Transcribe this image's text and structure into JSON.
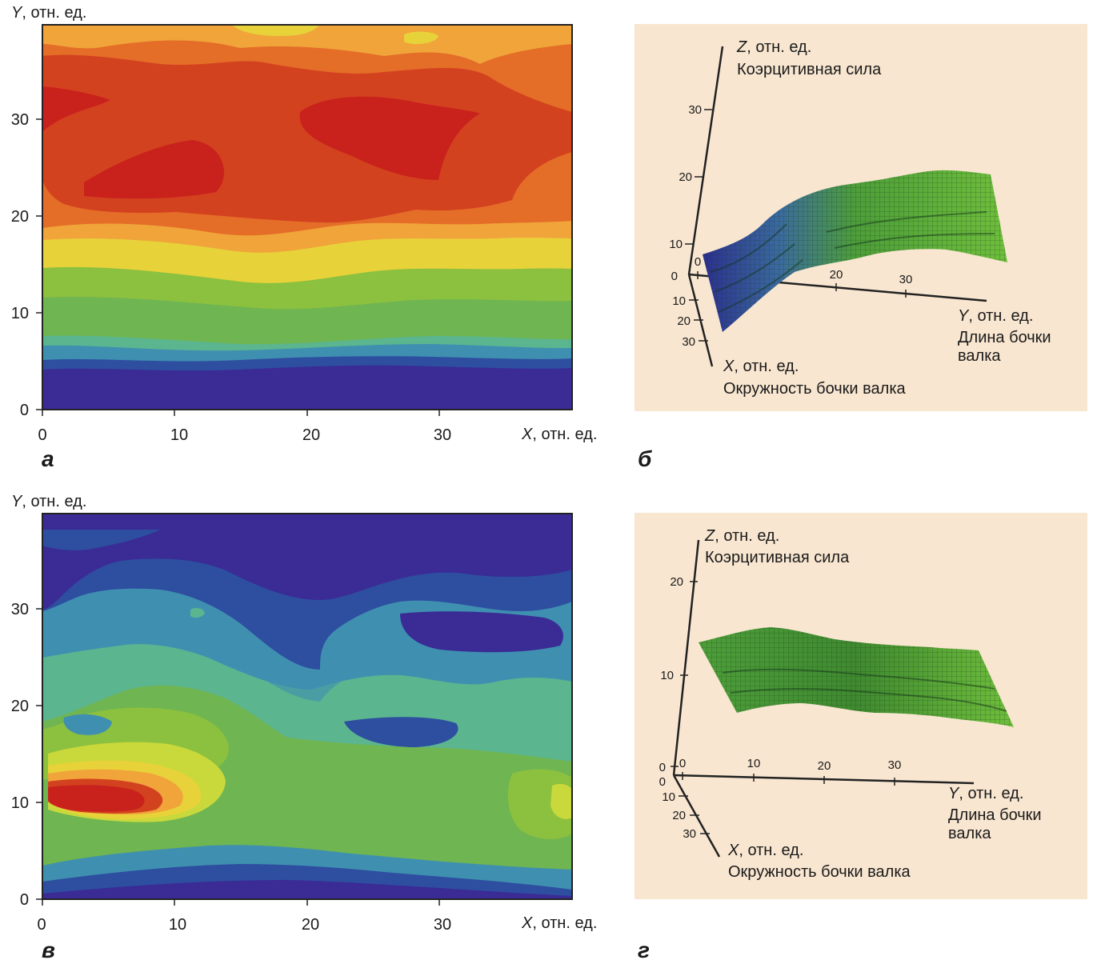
{
  "chart_data": [
    {
      "panel": "а",
      "type": "heatmap",
      "xlabel_var": "X",
      "xlabel_unit": ", отн. ед.",
      "ylabel_var": "Y",
      "ylabel_unit": ", отн. ед.",
      "xticks": [
        0,
        10,
        20,
        30
      ],
      "yticks": [
        0,
        10,
        20,
        30
      ],
      "xlim": [
        0,
        40
      ],
      "ylim": [
        0,
        40
      ],
      "colors": [
        "#3a2b95",
        "#2e4ea0",
        "#3f8fb0",
        "#5bb58f",
        "#6fb552",
        "#8cc03f",
        "#c9d83a",
        "#e8d23a",
        "#f0a43a",
        "#e46d28",
        "#d3421f",
        "#c9221c"
      ]
    },
    {
      "panel": "б",
      "type": "surface3d",
      "zlabel_var": "Z",
      "zlabel_unit": ", отн. ед.",
      "zlabel_desc": "Коэрцитивная сила",
      "ylabel_var": "Y",
      "ylabel_unit": ", отн. ед.",
      "ylabel_desc_1": "Длина бочки",
      "ylabel_desc_2": "валка",
      "xlabel_var": "X",
      "xlabel_unit": ", отн. ед.",
      "xlabel_desc": "Окружность бочки валка",
      "zticks": [
        0,
        10,
        20,
        30
      ],
      "yticks": [
        0,
        20,
        30
      ],
      "xticks": [
        10,
        20,
        30
      ],
      "colors": [
        "#2b2f8f",
        "#3a6aa0",
        "#4d9e3a",
        "#6fbf3c"
      ]
    },
    {
      "panel": "в",
      "type": "heatmap",
      "xlabel_var": "X",
      "xlabel_unit": ", отн. ед.",
      "ylabel_var": "Y",
      "ylabel_unit": ", отн. ед.",
      "xticks": [
        0,
        10,
        20,
        30
      ],
      "yticks": [
        0,
        10,
        20,
        30
      ],
      "xlim": [
        0,
        40
      ],
      "ylim": [
        0,
        40
      ],
      "colors": [
        "#3a2b95",
        "#2e4ea0",
        "#3f8fb0",
        "#5bb58f",
        "#6fb552",
        "#8cc03f",
        "#c9d83a",
        "#e8d23a",
        "#f0a43a",
        "#e46d28",
        "#d3421f",
        "#c9221c"
      ]
    },
    {
      "panel": "г",
      "type": "surface3d",
      "zlabel_var": "Z",
      "zlabel_unit": ", отн. ед.",
      "zlabel_desc": "Коэрцитивная сила",
      "ylabel_var": "Y",
      "ylabel_unit": ", отн. ед.",
      "ylabel_desc_1": "Длина бочки",
      "ylabel_desc_2": "валка",
      "xlabel_var": "X",
      "xlabel_unit": ", отн. ед.",
      "xlabel_desc": "Окружность бочки валка",
      "zticks": [
        0,
        10,
        20
      ],
      "yticks": [
        0,
        10,
        20,
        30
      ],
      "xticks": [
        0,
        10,
        20,
        30
      ],
      "colors": [
        "#2f6f26",
        "#4d9e3a",
        "#6fbf3c"
      ]
    }
  ],
  "panel_bg": "#f8e6d0"
}
